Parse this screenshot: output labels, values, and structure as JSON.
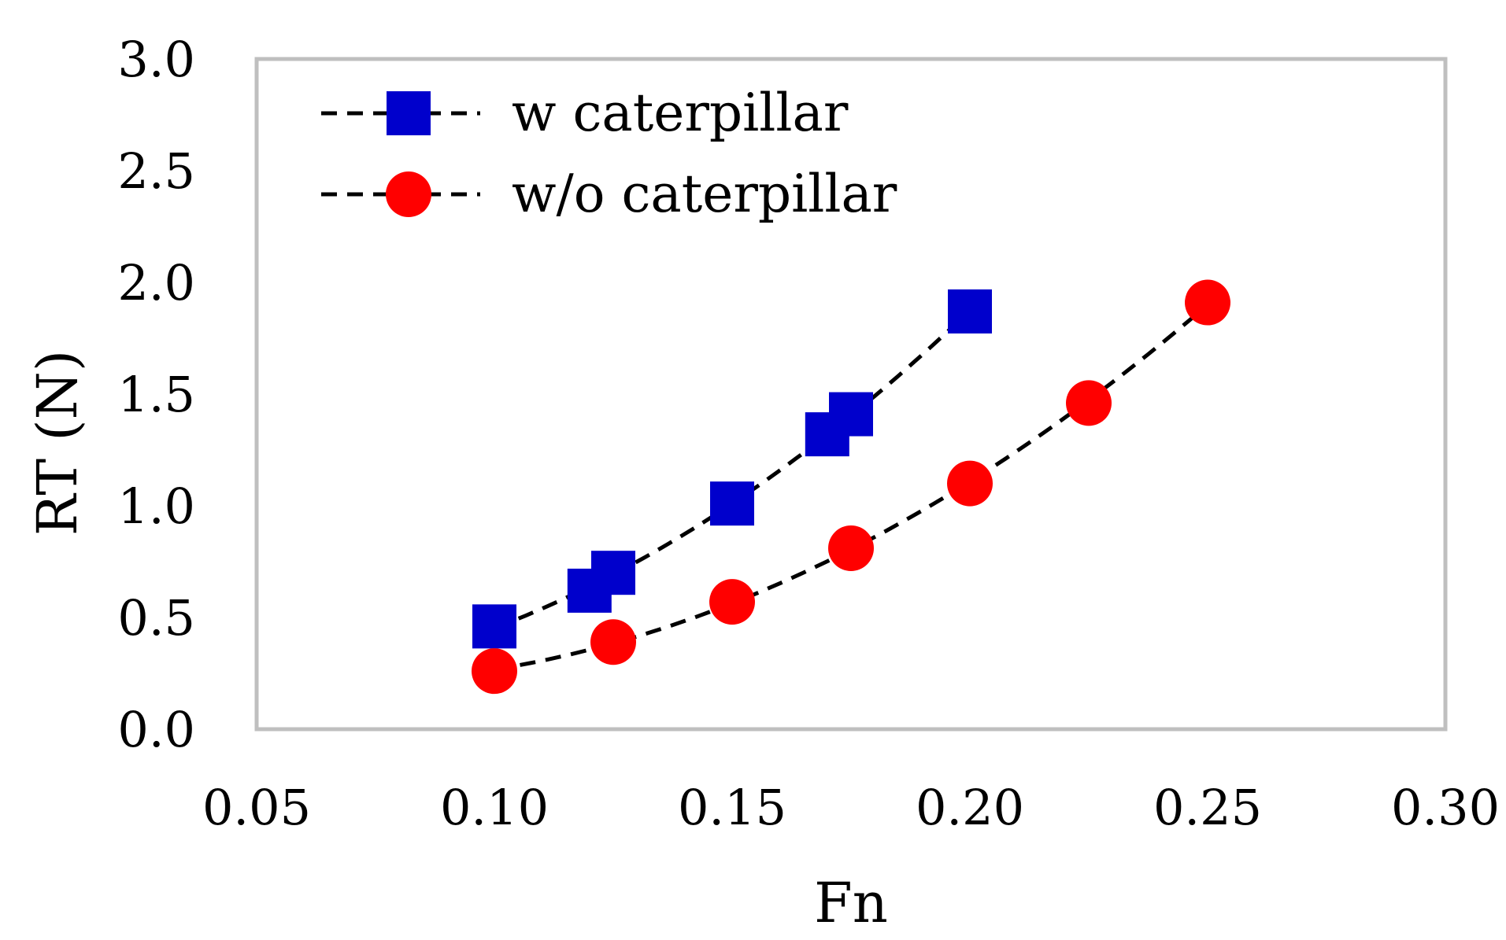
{
  "chart_data": {
    "type": "scatter",
    "title": "",
    "xlabel": "Fn",
    "ylabel": "RT (N)",
    "xlim": [
      0.05,
      0.3
    ],
    "ylim": [
      0.0,
      3.0
    ],
    "x_ticks": [
      "0.05",
      "0.10",
      "0.15",
      "0.20",
      "0.25",
      "0.30"
    ],
    "y_ticks": [
      "0.0",
      "0.5",
      "1.0",
      "1.5",
      "2.0",
      "2.5",
      "3.0"
    ],
    "grid": false,
    "legend_position": "top-left",
    "series": [
      {
        "name": "w caterpillar",
        "marker": "square",
        "color": "#0000CC",
        "trendline": "dashed",
        "x": [
          0.1,
          0.12,
          0.125,
          0.15,
          0.17,
          0.175,
          0.2
        ],
        "values": [
          0.46,
          0.62,
          0.7,
          1.01,
          1.32,
          1.41,
          1.87
        ]
      },
      {
        "name": "w/o caterpillar",
        "marker": "circle",
        "color": "#FF0000",
        "trendline": "dashed",
        "x": [
          0.1,
          0.125,
          0.15,
          0.175,
          0.2,
          0.225,
          0.25
        ],
        "values": [
          0.26,
          0.39,
          0.57,
          0.81,
          1.1,
          1.46,
          1.91
        ]
      }
    ]
  }
}
